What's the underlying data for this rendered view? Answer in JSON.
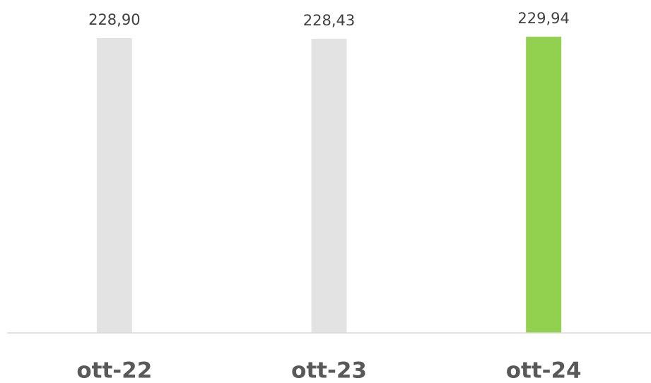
{
  "chart_data": {
    "type": "bar",
    "categories": [
      "ott-22",
      "ott-23",
      "ott-24"
    ],
    "values": [
      228.9,
      228.43,
      229.94
    ],
    "value_labels": [
      "228,90",
      "228,43",
      "229,94"
    ],
    "colors": [
      "#e3e3e3",
      "#e3e3e3",
      "#92d050"
    ],
    "ylim": [
      0,
      230
    ]
  }
}
